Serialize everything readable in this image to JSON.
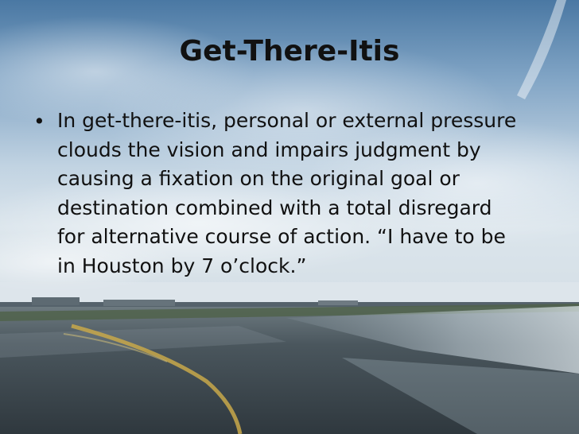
{
  "slide": {
    "title": "Get-There-Itis",
    "bullet_symbol": "•",
    "bullet_lines": [
      "In get-there-itis, personal or external pressure",
      "clouds the vision and impairs judgment by",
      "causing a fixation on the original goal or",
      "destination combined with a total disregard",
      "for alternative course of action. “I have to be",
      "in Houston by 7 o’clock.”"
    ]
  },
  "background": {
    "description_icon": "sky-and-wet-runway-photo",
    "sky_top_color": "#4d7ca8",
    "sky_mid_color": "#b7cde0",
    "horizon_color": "#cfdbe5",
    "ground_color": "#3e4a52",
    "runway_line_color": "#c8a84a"
  }
}
